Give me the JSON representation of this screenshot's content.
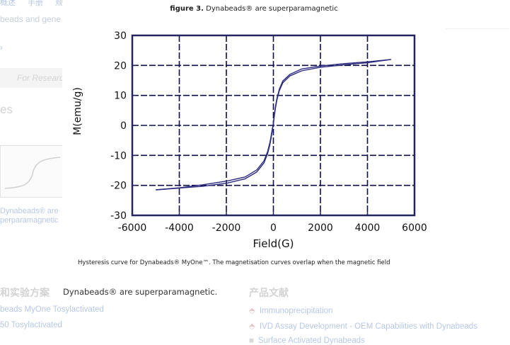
{
  "figure": {
    "label": "figure 3.",
    "title": "Dynabeads® are superparamagnetic",
    "caption": "Hysteresis curve for Dynabeads® MyOne™. The magnetisation curves overlap when the magnetic field"
  },
  "below_caption": "Dynabeads® are superparamagnetic.",
  "background": {
    "top_nav": [
      "概述",
      "手册",
      "规"
    ],
    "subtitle": "beads and gene",
    "for_research": "For Research",
    "section_heading": "es",
    "thumb_caption": [
      "Dynabeads® are",
      "perparamagnetic"
    ],
    "left_heading": "和实验方案",
    "left_links": [
      "beads MyOne Tosylactivated",
      "50 Tosylactivated"
    ],
    "right_heading": "产品文献",
    "right_links": [
      "Immunoprecipitation",
      "IVD Assay Development - OEM Capabilities with Dynabeads",
      "Surface Activated Dynabeads"
    ]
  },
  "colors": {
    "curve": "#2b2b7e",
    "frame": "#24245f",
    "grid": "#0e0e4a"
  },
  "chart_data": {
    "type": "line",
    "title": "",
    "xlabel": "Field(G)",
    "ylabel": "M(emu/g)",
    "xlim": [
      -6000,
      6000
    ],
    "ylim": [
      -30,
      30
    ],
    "xticks": [
      -6000,
      -4000,
      -2000,
      0,
      2000,
      4000,
      6000
    ],
    "yticks": [
      -30,
      -20,
      -10,
      0,
      10,
      20,
      30
    ],
    "grid": true,
    "series": [
      {
        "x": [
          -5000,
          -4000,
          -3000,
          -2000,
          -1200,
          -700,
          -400,
          -250,
          -150,
          -80,
          -30,
          0,
          30,
          80,
          150,
          250,
          400,
          700,
          1200,
          2000,
          3000,
          4000,
          5000
        ],
        "y": [
          -21.5,
          -20.9,
          -20.3,
          -19.3,
          -17.8,
          -15.5,
          -12.5,
          -9.5,
          -6.5,
          -3.5,
          -1,
          0.5,
          2.5,
          5.5,
          8.5,
          11.5,
          14.2,
          16.5,
          18.2,
          19.4,
          20.2,
          20.9,
          22
        ]
      },
      {
        "x": [
          -5000,
          -4000,
          -3000,
          -2000,
          -1200,
          -700,
          -400,
          -250,
          -150,
          -80,
          -30,
          0,
          30,
          80,
          150,
          250,
          400,
          700,
          1200,
          2000,
          3000,
          4000,
          5000
        ],
        "y": [
          -21.5,
          -20.8,
          -19.8,
          -18.6,
          -17.2,
          -14.8,
          -11.8,
          -8.8,
          -5.8,
          -2.8,
          -0.5,
          0.8,
          3,
          6,
          9,
          12,
          14.8,
          17,
          18.8,
          19.8,
          20.6,
          21.2,
          22
        ]
      }
    ]
  }
}
